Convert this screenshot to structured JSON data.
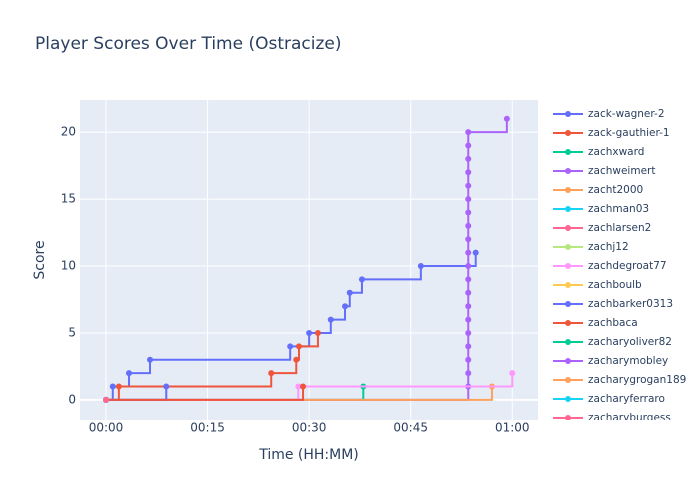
{
  "chart_data": {
    "type": "line",
    "line_shape": "hv",
    "title": "Player Scores Over Time (Ostracize)",
    "x_label": "Time (HH:MM)",
    "y_label": "Score",
    "xlim": [
      -3.84,
      63.8
    ],
    "ylim": [
      -1.5,
      22.4
    ],
    "xticks": [
      {
        "value": 0,
        "label": "00:00"
      },
      {
        "value": 15,
        "label": "00:15"
      },
      {
        "value": 30,
        "label": "00:30"
      },
      {
        "value": 45,
        "label": "00:45"
      },
      {
        "value": 60,
        "label": "01:00"
      }
    ],
    "yticks": [
      0,
      5,
      10,
      15,
      20
    ],
    "grid": true,
    "legend": "right",
    "series": [
      {
        "name": "zack-wagner-2",
        "color": "#636efa",
        "x": [
          0,
          1.0,
          3.4,
          6.5,
          27.2,
          30.0,
          33.2,
          35.3,
          36.0,
          37.8,
          46.5,
          54.6
        ],
        "values": [
          0,
          1,
          2,
          3,
          4,
          5,
          6,
          7,
          8,
          9,
          10,
          11
        ]
      },
      {
        "name": "zack-gauthier-1",
        "color": "#ef553b",
        "x": [
          0,
          1.9,
          24.4,
          28.1,
          28.5,
          31.3
        ],
        "values": [
          0,
          1,
          2,
          3,
          4,
          5
        ]
      },
      {
        "name": "zachxward",
        "color": "#00cc96",
        "x": [
          0,
          38.0
        ],
        "values": [
          0,
          1
        ]
      },
      {
        "name": "zachweimert",
        "color": "#ab63fa",
        "x": [
          0,
          53.5,
          53.5,
          53.5,
          53.5,
          53.5,
          53.5,
          53.5,
          53.5,
          53.5,
          53.5,
          53.5,
          53.5,
          53.5,
          53.5,
          53.5,
          53.5,
          53.5,
          53.5,
          53.5,
          53.5,
          59.2
        ],
        "values": [
          0,
          1,
          2,
          3,
          4,
          5,
          6,
          7,
          8,
          9,
          10,
          11,
          12,
          13,
          14,
          15,
          16,
          17,
          18,
          19,
          20,
          21
        ]
      },
      {
        "name": "zacht2000",
        "color": "#ffa15a",
        "x": [
          0,
          57.0
        ],
        "values": [
          0,
          1
        ]
      },
      {
        "name": "zachman03",
        "color": "#19d3f3",
        "x": [
          0
        ],
        "values": [
          0
        ]
      },
      {
        "name": "zachlarsen2",
        "color": "#ff6692",
        "x": [
          0
        ],
        "values": [
          0
        ]
      },
      {
        "name": "zachj12",
        "color": "#b6e880",
        "x": [
          0
        ],
        "values": [
          0
        ]
      },
      {
        "name": "zachdegroat77",
        "color": "#ff97ff",
        "x": [
          0,
          28.4,
          60.0
        ],
        "values": [
          0,
          1,
          2
        ]
      },
      {
        "name": "zachboulb",
        "color": "#fecb52",
        "x": [
          0
        ],
        "values": [
          0
        ]
      },
      {
        "name": "zachbarker0313",
        "color": "#636efa",
        "x": [
          0,
          8.9
        ],
        "values": [
          0,
          1
        ]
      },
      {
        "name": "zachbaca",
        "color": "#ef553b",
        "x": [
          0,
          29.1
        ],
        "values": [
          0,
          1
        ]
      },
      {
        "name": "zacharyoliver82",
        "color": "#00cc96",
        "x": [
          0
        ],
        "values": [
          0
        ]
      },
      {
        "name": "zacharymobley",
        "color": "#ab63fa",
        "x": [
          0
        ],
        "values": [
          0
        ]
      },
      {
        "name": "zacharygrogan189",
        "color": "#ffa15a",
        "x": [
          0
        ],
        "values": [
          0
        ]
      },
      {
        "name": "zacharyferraro",
        "color": "#19d3f3",
        "x": [
          0
        ],
        "values": [
          0
        ]
      },
      {
        "name": "zacharyburgess",
        "color": "#ff6692",
        "x": [
          0
        ],
        "values": [
          0
        ]
      }
    ]
  }
}
